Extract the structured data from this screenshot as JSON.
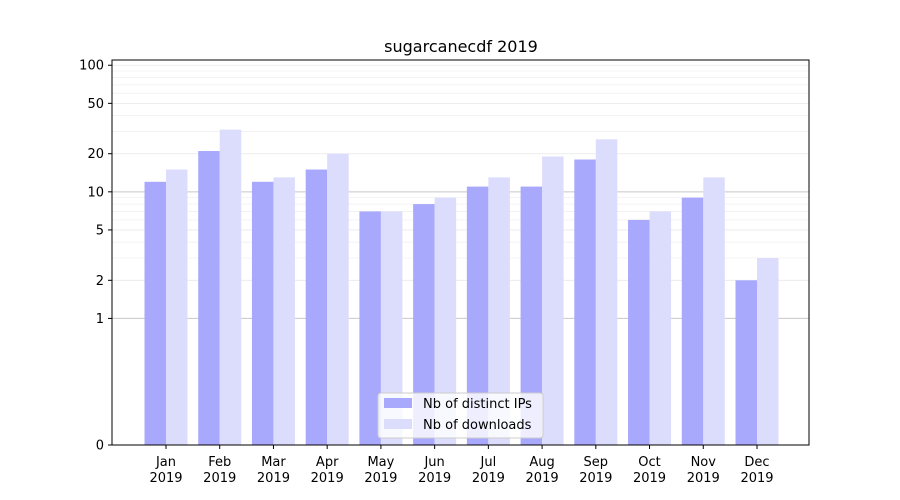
{
  "chart_data": {
    "type": "bar",
    "title": "sugarcanecdf 2019",
    "xlabel": "",
    "ylabel": "",
    "y_scale": "symlog",
    "ylim": [
      0,
      110
    ],
    "y_ticks": [
      0,
      1,
      2,
      5,
      10,
      20,
      50,
      100
    ],
    "y_tick_labels": [
      "0",
      "1",
      "2",
      "5",
      "10",
      "20",
      "50",
      "100"
    ],
    "categories": [
      "Jan 2019",
      "Feb 2019",
      "Mar 2019",
      "Apr 2019",
      "May 2019",
      "Jun 2019",
      "Jul 2019",
      "Aug 2019",
      "Sep 2019",
      "Oct 2019",
      "Nov 2019",
      "Dec 2019"
    ],
    "category_lines": [
      [
        "Jan",
        "2019"
      ],
      [
        "Feb",
        "2019"
      ],
      [
        "Mar",
        "2019"
      ],
      [
        "Apr",
        "2019"
      ],
      [
        "May",
        "2019"
      ],
      [
        "Jun",
        "2019"
      ],
      [
        "Jul",
        "2019"
      ],
      [
        "Aug",
        "2019"
      ],
      [
        "Sep",
        "2019"
      ],
      [
        "Oct",
        "2019"
      ],
      [
        "Nov",
        "2019"
      ],
      [
        "Dec",
        "2019"
      ]
    ],
    "series": [
      {
        "name": "Nb of distinct IPs",
        "color": "#a8a8fc",
        "values": [
          12,
          21,
          12,
          15,
          7,
          8,
          11,
          11,
          18,
          6,
          9,
          2
        ]
      },
      {
        "name": "Nb of downloads",
        "color": "#dcdcfd",
        "values": [
          15,
          31,
          13,
          20,
          7,
          9,
          13,
          19,
          26,
          7,
          13,
          3
        ]
      }
    ],
    "legend_position": "lower-center",
    "grid": true
  }
}
